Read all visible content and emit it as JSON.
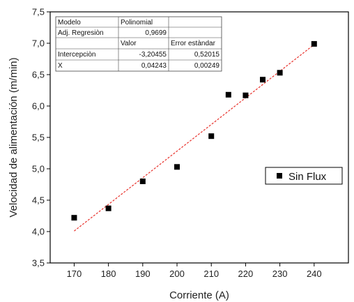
{
  "chart_data": {
    "type": "scatter",
    "xlabel": "Corriente (A)",
    "ylabel": "Velocidad de alimentación (m/min)",
    "xlim": [
      163,
      250
    ],
    "ylim": [
      3.5,
      7.5
    ],
    "x_ticks": [
      170,
      180,
      190,
      200,
      210,
      220,
      230,
      240
    ],
    "y_ticks": [
      "3,5",
      "4,0",
      "4,5",
      "5,0",
      "5,5",
      "6,0",
      "6,5",
      "7,0",
      "7,5"
    ],
    "series": [
      {
        "name": "Sin Flux",
        "marker": "square",
        "color": "#000000",
        "points": [
          {
            "x": 170,
            "y": 4.22
          },
          {
            "x": 180,
            "y": 4.37
          },
          {
            "x": 190,
            "y": 4.8
          },
          {
            "x": 200,
            "y": 5.03
          },
          {
            "x": 210,
            "y": 5.52
          },
          {
            "x": 215,
            "y": 6.18
          },
          {
            "x": 220,
            "y": 6.17
          },
          {
            "x": 225,
            "y": 6.42
          },
          {
            "x": 230,
            "y": 6.53
          },
          {
            "x": 240,
            "y": 6.99
          }
        ]
      }
    ],
    "fit": {
      "type": "linear",
      "color": "#e8302a",
      "style": "dashed",
      "intercept": -3.20455,
      "slope": 0.04243,
      "x_range": [
        170,
        240
      ]
    },
    "fit_table": {
      "rows": [
        [
          "Modelo",
          "Polinomial",
          ""
        ],
        [
          "Adj. Regresiòn",
          "0,9699",
          ""
        ],
        [
          "",
          "Valor",
          "Error estàndar"
        ],
        [
          "Intercepciòn",
          "-3,20455",
          "0,52015"
        ],
        [
          "X",
          "0,04243",
          "0,00249"
        ]
      ]
    },
    "legend": {
      "position": "right",
      "label": "Sin Flux"
    }
  }
}
